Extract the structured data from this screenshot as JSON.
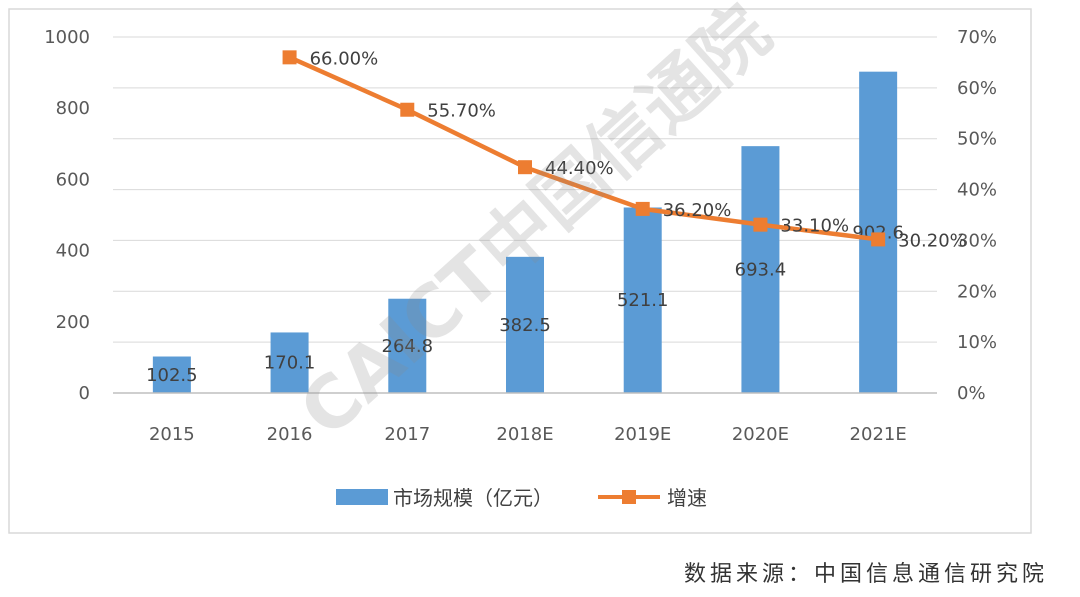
{
  "chart_data": {
    "type": "bar",
    "categories": [
      "2015",
      "2016",
      "2017",
      "2018E",
      "2019E",
      "2020E",
      "2021E"
    ],
    "series": [
      {
        "name": "市场规模（亿元）",
        "type": "bar",
        "axis": "left",
        "values": [
          102.5,
          170.1,
          264.8,
          382.5,
          521.1,
          693.4,
          902.6
        ],
        "labels": [
          "102.5",
          "170.1",
          "264.8",
          "382.5",
          "521.1",
          "693.4",
          "902.6"
        ],
        "color": "#5b9bd5"
      },
      {
        "name": "增速",
        "type": "line",
        "axis": "right",
        "values": [
          null,
          66.0,
          55.7,
          44.4,
          36.2,
          33.1,
          30.2
        ],
        "labels": [
          null,
          "66.00%",
          "55.70%",
          "44.40%",
          "36.20%",
          "33.10%",
          "30.20%"
        ],
        "color": "#ed7d31"
      }
    ],
    "y_left": {
      "range": [
        0,
        1000
      ],
      "ticks": [
        "0",
        "200",
        "400",
        "600",
        "800",
        "1000"
      ]
    },
    "y_right": {
      "range": [
        0,
        70
      ],
      "ticks": [
        "0%",
        "10%",
        "20%",
        "30%",
        "40%",
        "50%",
        "60%",
        "70%"
      ]
    },
    "grid": true,
    "legend": {
      "position": "bottom"
    }
  },
  "watermark": "CAICT 中国信通院",
  "source_note": "数据来源：中国信息通信研究院"
}
